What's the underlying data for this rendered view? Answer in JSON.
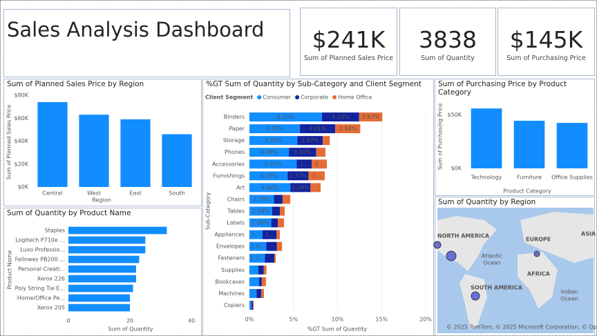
{
  "header": {
    "title": "Sales Analysis Dashboard"
  },
  "cards": [
    {
      "value": "$241K",
      "label": "Sum of Planned Sales Price"
    },
    {
      "value": "3838",
      "label": "Sum of Quantity"
    },
    {
      "value": "$145K",
      "label": "Sum of Purchasing Price"
    }
  ],
  "chart_data": [
    {
      "type": "bar",
      "title": "Sum of Planned Sales Price by Region",
      "x_label": "Region",
      "y_label": "Sum of Planned Sales Price",
      "categories": [
        "Central",
        "West",
        "East",
        "South"
      ],
      "values": [
        74000,
        63000,
        59000,
        46000
      ],
      "color": "#118DFF",
      "ylim": [
        0,
        80000
      ],
      "yticks": [
        {
          "value": 0,
          "label": "$0K"
        },
        {
          "value": 20000,
          "label": "$20K"
        },
        {
          "value": 40000,
          "label": "$40K"
        },
        {
          "value": 60000,
          "label": "$60K"
        },
        {
          "value": 80000,
          "label": "$80K"
        }
      ],
      "grid": false
    },
    {
      "type": "bar",
      "orientation": "horizontal",
      "stacked": true,
      "title": "%GT Sum of Quantity by Sub-Category and Client Segment",
      "legend_title": "Client Segment",
      "x_label": "%GT Sum of Quantity",
      "y_label": "Sub-Category",
      "categories": [
        "Binders",
        "Paper",
        "Storage",
        "Phones",
        "Accessories",
        "Furnishings",
        "Art",
        "Chairs",
        "Tables",
        "Labels",
        "Appliances",
        "Envelopes",
        "Fasteners",
        "Supplies",
        "Bookcases",
        "Machines",
        "Copiers"
      ],
      "series": [
        {
          "name": "Consumer",
          "color": "#118DFF",
          "values": [
            8.23,
            5.73,
            5.45,
            4.48,
            5.37,
            4.33,
            4.64,
            2.79,
            2.58,
            2.48,
            1.49,
            1.9,
            1.75,
            1.0,
            1.1,
            0.8,
            0.25
          ],
          "value_labels": [
            "8.23%",
            "5.73%",
            "5.45%",
            "4.48%",
            "5.37%",
            "4.33%",
            "4.64%",
            "2.79%",
            "2.58%",
            "2.48%",
            "1...",
            "1.9...",
            "1.7...",
            null,
            null,
            null,
            null
          ]
        },
        {
          "name": "Corporate",
          "color": "#12239E",
          "values": [
            4.22,
            4.01,
            2.87,
            3.1,
            1.69,
            2.37,
            2.29,
            0.97,
            0.87,
            0.74,
            1.57,
            1.2,
            1.07,
            0.63,
            0.3,
            0.55,
            0.15
          ],
          "value_labels": [
            "4.22%",
            "4.01%",
            "2.87%",
            "3.10%",
            "1...",
            "2.37%",
            "2.29%",
            null,
            null,
            null,
            "1...",
            null,
            null,
            null,
            null,
            null,
            null
          ]
        },
        {
          "name": "Home Office",
          "color": "#E66C37",
          "values": [
            2.63,
            2.84,
            0.8,
            1.05,
            1.73,
            1.85,
            1.15,
            0.87,
            0.55,
            0.7,
            0.39,
            0.6,
            0.16,
            0.3,
            0.47,
            0.3,
            0.08
          ],
          "value_labels": [
            "2.63%",
            "2.84%",
            null,
            null,
            "1...",
            "1...",
            null,
            null,
            null,
            null,
            null,
            null,
            null,
            null,
            null,
            null,
            null
          ]
        }
      ],
      "xlim": [
        0,
        20
      ],
      "xticks": [
        {
          "value": 0,
          "label": "0%"
        },
        {
          "value": 5,
          "label": "5%"
        },
        {
          "value": 10,
          "label": "10%"
        },
        {
          "value": 15,
          "label": "15%"
        },
        {
          "value": 20,
          "label": "20%"
        }
      ],
      "grid": true
    },
    {
      "type": "bar",
      "title": "Sum of Purchasing Price by Product Category",
      "x_label": "Product Category",
      "y_label": "Sum of Purchasing Price",
      "categories": [
        "Technology",
        "Furniture",
        "Office Supplies"
      ],
      "values": [
        56000,
        44500,
        42500
      ],
      "color": "#118DFF",
      "ylim": [
        0,
        60000
      ],
      "yticks": [
        {
          "value": 0,
          "label": "$0K"
        },
        {
          "value": 50000,
          "label": "$50K"
        }
      ],
      "grid": false
    },
    {
      "type": "bar",
      "orientation": "horizontal",
      "title": "Sum of Quantity by Product Name",
      "x_label": "Sum of Quantity",
      "y_label": "Product Name",
      "categories": [
        "Staples",
        "Logitech P710e ...",
        "Luxo Professio...",
        "Fellowes PB200 ...",
        "Personal Creati...",
        "Xerox 226",
        "Poly String Tie E...",
        "Home/Office Pe...",
        "Xerox 205"
      ],
      "values": [
        32,
        25,
        25,
        23,
        22,
        22,
        21,
        20,
        20
      ],
      "color": "#118DFF",
      "xlim": [
        0,
        42
      ],
      "xticks": [
        0,
        20,
        40
      ],
      "grid": false
    }
  ],
  "map": {
    "title": "Sum of Quantity by Region",
    "labels": [
      "NORTH AMERICA",
      "EUROPE",
      "ASIA",
      "AFRICA",
      "SOUTH AMERICA",
      "Atlantic",
      "Ocean",
      "Indian",
      "Ocean"
    ],
    "attribution": "© 2025 TomTom, © 2025 Microsoft Corporation, © OpenStreetMap  Terms"
  }
}
